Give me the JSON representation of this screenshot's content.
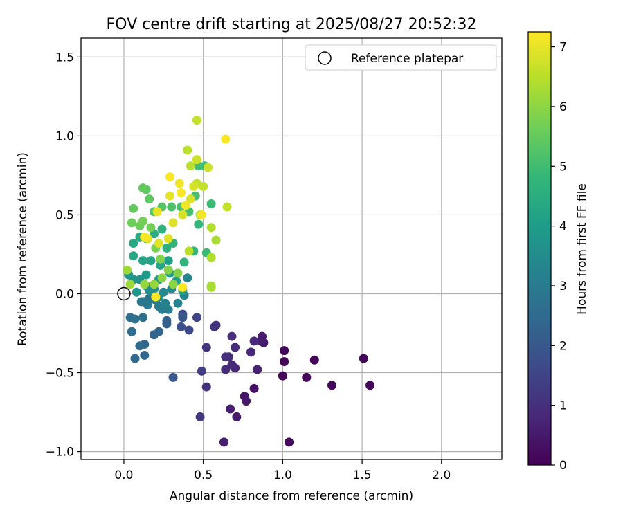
{
  "chart_data": {
    "type": "scatter",
    "title": "FOV centre drift starting at 2025/08/27 20:52:32",
    "xlabel": "Angular distance from reference (arcmin)",
    "ylabel": "Rotation from reference (arcmin)",
    "xlim": [
      -0.27,
      2.38
    ],
    "ylim": [
      -1.05,
      1.62
    ],
    "xticks": [
      0.0,
      0.5,
      1.0,
      1.5,
      2.0
    ],
    "xtick_labels": [
      "0.0",
      "0.5",
      "1.0",
      "1.5",
      "2.0"
    ],
    "yticks": [
      -1.0,
      -0.5,
      0.0,
      0.5,
      1.0,
      1.5
    ],
    "ytick_labels": [
      "−1.0",
      "−0.5",
      "0.0",
      "0.5",
      "1.0",
      "1.5"
    ],
    "grid": true,
    "legend": {
      "position": "upper-right",
      "entries": [
        "Reference platepar"
      ]
    },
    "reference_point": {
      "x": 0.0,
      "y": 0.0
    },
    "colorbar": {
      "label": "Hours from first FF file",
      "colormap": "viridis",
      "range": [
        0,
        7.25
      ],
      "ticks": [
        0,
        1,
        2,
        3,
        4,
        5,
        6,
        7
      ],
      "tick_labels": [
        "0",
        "1",
        "2",
        "3",
        "4",
        "5",
        "6",
        "7"
      ]
    },
    "point_columns": [
      "x",
      "y",
      "hours"
    ],
    "points": [
      [
        1.01,
        -0.36,
        0.1
      ],
      [
        1.2,
        -0.42,
        0.1
      ],
      [
        1.51,
        -0.41,
        0.1
      ],
      [
        1.55,
        -0.58,
        0.1
      ],
      [
        1.31,
        -0.58,
        0.1
      ],
      [
        1.15,
        -0.53,
        0.1
      ],
      [
        1.0,
        -0.52,
        0.1
      ],
      [
        1.01,
        -0.43,
        0.1
      ],
      [
        1.04,
        -0.94,
        0.1
      ],
      [
        0.82,
        -0.6,
        0.3
      ],
      [
        0.76,
        -0.65,
        0.4
      ],
      [
        0.77,
        -0.68,
        0.5
      ],
      [
        0.71,
        -0.78,
        0.5
      ],
      [
        0.67,
        -0.73,
        0.6
      ],
      [
        0.63,
        -0.94,
        0.6
      ],
      [
        0.88,
        -0.31,
        0.5
      ],
      [
        0.87,
        -0.27,
        0.5
      ],
      [
        0.86,
        -0.3,
        0.6
      ],
      [
        0.84,
        -0.48,
        0.7
      ],
      [
        0.82,
        -0.3,
        0.8
      ],
      [
        0.8,
        -0.37,
        0.8
      ],
      [
        0.7,
        -0.47,
        0.8
      ],
      [
        0.7,
        -0.34,
        0.9
      ],
      [
        0.68,
        -0.45,
        0.9
      ],
      [
        0.66,
        -0.4,
        0.9
      ],
      [
        0.64,
        -0.48,
        0.9
      ],
      [
        0.64,
        -0.4,
        1.0
      ],
      [
        0.68,
        -0.27,
        1.0
      ],
      [
        0.58,
        -0.2,
        1.0
      ],
      [
        0.57,
        -0.21,
        1.1
      ],
      [
        0.52,
        -0.34,
        1.1
      ],
      [
        0.52,
        -0.59,
        1.1
      ],
      [
        0.48,
        -0.78,
        1.2
      ],
      [
        0.49,
        -0.49,
        1.3
      ],
      [
        0.46,
        -0.15,
        1.5
      ],
      [
        0.41,
        -0.23,
        1.6
      ],
      [
        0.37,
        -0.13,
        1.6
      ],
      [
        0.36,
        -0.21,
        1.8
      ],
      [
        0.31,
        -0.53,
        2.0
      ],
      [
        0.37,
        -0.15,
        2.0
      ],
      [
        0.27,
        -0.17,
        2.2
      ],
      [
        0.27,
        -0.19,
        2.2
      ],
      [
        0.22,
        -0.24,
        2.3
      ],
      [
        0.19,
        -0.26,
        2.3
      ],
      [
        0.13,
        -0.39,
        2.4
      ],
      [
        0.13,
        -0.32,
        2.4
      ],
      [
        0.1,
        -0.33,
        2.5
      ],
      [
        0.07,
        -0.41,
        2.5
      ],
      [
        0.05,
        -0.24,
        2.6
      ],
      [
        0.04,
        -0.15,
        2.6
      ],
      [
        0.07,
        -0.16,
        2.7
      ],
      [
        0.12,
        -0.15,
        2.7
      ],
      [
        0.13,
        -0.05,
        2.8
      ],
      [
        0.16,
        -0.03,
        2.8
      ],
      [
        0.15,
        -0.07,
        2.9
      ],
      [
        0.11,
        -0.05,
        2.9
      ],
      [
        0.2,
        -0.04,
        3.0
      ],
      [
        0.22,
        -0.08,
        3.0
      ],
      [
        0.24,
        -0.1,
        3.1
      ],
      [
        0.28,
        -0.1,
        3.1
      ],
      [
        0.26,
        -0.06,
        3.2
      ],
      [
        0.34,
        -0.06,
        3.2
      ],
      [
        0.38,
        -0.01,
        3.3
      ],
      [
        0.4,
        0.1,
        3.3
      ],
      [
        0.3,
        0.03,
        3.4
      ],
      [
        0.25,
        0.01,
        3.4
      ],
      [
        0.22,
        -0.02,
        3.5
      ],
      [
        0.19,
        0.03,
        3.5
      ],
      [
        0.16,
        0.02,
        3.6
      ],
      [
        0.14,
        0.05,
        3.6
      ],
      [
        0.1,
        0.09,
        3.7
      ],
      [
        0.06,
        0.09,
        3.7
      ],
      [
        0.03,
        0.12,
        3.8
      ],
      [
        0.08,
        0.01,
        3.8
      ],
      [
        0.14,
        0.12,
        3.9
      ],
      [
        0.22,
        0.09,
        3.9
      ],
      [
        0.29,
        0.13,
        4.0
      ],
      [
        0.33,
        0.08,
        4.0
      ],
      [
        0.37,
        0.02,
        4.1
      ],
      [
        0.28,
        0.21,
        4.1
      ],
      [
        0.23,
        0.18,
        4.2
      ],
      [
        0.17,
        0.21,
        4.2
      ],
      [
        0.12,
        0.21,
        4.3
      ],
      [
        0.06,
        0.24,
        4.3
      ],
      [
        0.06,
        0.32,
        4.4
      ],
      [
        0.1,
        0.36,
        4.4
      ],
      [
        0.14,
        0.35,
        4.5
      ],
      [
        0.19,
        0.38,
        4.5
      ],
      [
        0.24,
        0.41,
        4.6
      ],
      [
        0.27,
        0.29,
        4.6
      ],
      [
        0.31,
        0.32,
        4.7
      ],
      [
        0.38,
        0.2,
        4.7
      ],
      [
        0.44,
        0.27,
        4.8
      ],
      [
        0.47,
        0.44,
        4.8
      ],
      [
        0.52,
        0.26,
        4.9
      ],
      [
        0.55,
        0.57,
        4.9
      ],
      [
        0.51,
        0.81,
        5.0
      ],
      [
        0.47,
        0.81,
        5.0
      ],
      [
        0.45,
        0.62,
        5.1
      ],
      [
        0.41,
        0.52,
        5.1
      ],
      [
        0.36,
        0.55,
        5.2
      ],
      [
        0.3,
        0.55,
        5.2
      ],
      [
        0.24,
        0.55,
        5.3
      ],
      [
        0.19,
        0.52,
        5.3
      ],
      [
        0.16,
        0.6,
        5.4
      ],
      [
        0.14,
        0.66,
        5.4
      ],
      [
        0.12,
        0.67,
        5.5
      ],
      [
        0.06,
        0.54,
        5.5
      ],
      [
        0.05,
        0.45,
        5.6
      ],
      [
        0.1,
        0.43,
        5.6
      ],
      [
        0.12,
        0.46,
        5.7
      ],
      [
        0.17,
        0.42,
        5.7
      ],
      [
        0.2,
        0.29,
        5.8
      ],
      [
        0.23,
        0.22,
        5.8
      ],
      [
        0.28,
        0.15,
        5.9
      ],
      [
        0.34,
        0.13,
        5.9
      ],
      [
        0.31,
        0.06,
        6.0
      ],
      [
        0.24,
        0.1,
        6.0
      ],
      [
        0.19,
        0.06,
        6.1
      ],
      [
        0.13,
        0.06,
        6.1
      ],
      [
        0.04,
        0.06,
        6.2
      ],
      [
        0.02,
        0.15,
        6.2
      ],
      [
        0.55,
        0.05,
        6.3
      ],
      [
        0.55,
        0.04,
        6.3
      ],
      [
        0.58,
        0.34,
        6.3
      ],
      [
        0.55,
        0.42,
        6.4
      ],
      [
        0.55,
        0.23,
        6.4
      ],
      [
        0.48,
        0.5,
        6.4
      ],
      [
        0.41,
        0.27,
        6.5
      ],
      [
        0.42,
        0.81,
        6.5
      ],
      [
        0.4,
        0.91,
        6.5
      ],
      [
        0.46,
        0.7,
        6.6
      ],
      [
        0.5,
        0.68,
        6.6
      ],
      [
        0.65,
        0.55,
        6.6
      ],
      [
        0.46,
        1.1,
        6.6
      ],
      [
        0.46,
        0.85,
        6.7
      ],
      [
        0.53,
        0.8,
        6.7
      ],
      [
        0.44,
        0.68,
        6.8
      ],
      [
        0.42,
        0.6,
        6.8
      ],
      [
        0.37,
        0.5,
        6.8
      ],
      [
        0.31,
        0.45,
        6.9
      ],
      [
        0.28,
        0.35,
        6.9
      ],
      [
        0.22,
        0.32,
        6.9
      ],
      [
        0.15,
        0.35,
        7.0
      ],
      [
        0.21,
        0.52,
        7.0
      ],
      [
        0.29,
        0.62,
        7.0
      ],
      [
        0.35,
        0.7,
        7.1
      ],
      [
        0.39,
        0.56,
        7.1
      ],
      [
        0.49,
        0.5,
        7.1
      ],
      [
        0.64,
        0.98,
        7.2
      ],
      [
        0.29,
        0.74,
        7.2
      ],
      [
        0.36,
        0.64,
        7.2
      ],
      [
        0.2,
        -0.02,
        7.2
      ],
      [
        0.37,
        0.04,
        7.2
      ],
      [
        0.13,
        0.36,
        7.2
      ]
    ]
  }
}
